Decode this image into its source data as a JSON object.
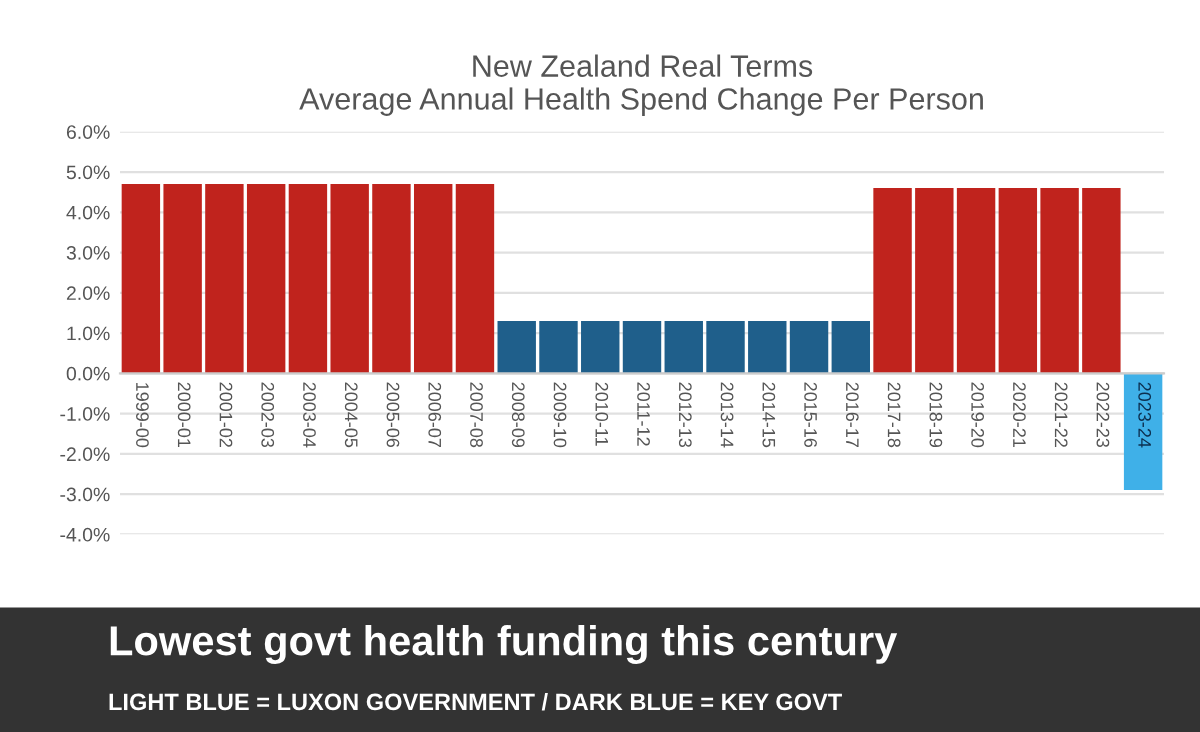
{
  "chart_data": {
    "type": "bar",
    "title": "New Zealand Real Terms\nAverage Annual Health Spend Change Per Person",
    "categories": [
      "1999-00",
      "2000-01",
      "2001-02",
      "2002-03",
      "2003-04",
      "2004-05",
      "2005-06",
      "2006-07",
      "2007-08",
      "2008-09",
      "2009-10",
      "2010-11",
      "2011-12",
      "2012-13",
      "2013-14",
      "2014-15",
      "2015-16",
      "2016-17",
      "2017-18",
      "2018-19",
      "2019-20",
      "2020-21",
      "2021-22",
      "2022-23",
      "2023-24"
    ],
    "values": [
      4.7,
      4.7,
      4.7,
      4.7,
      4.7,
      4.7,
      4.7,
      4.7,
      4.7,
      1.3,
      1.3,
      1.3,
      1.3,
      1.3,
      1.3,
      1.3,
      1.3,
      1.3,
      4.6,
      4.6,
      4.6,
      4.6,
      4.6,
      4.6,
      -2.9
    ],
    "colors": [
      "#c0231d",
      "#c0231d",
      "#c0231d",
      "#c0231d",
      "#c0231d",
      "#c0231d",
      "#c0231d",
      "#c0231d",
      "#c0231d",
      "#1f5f8b",
      "#1f5f8b",
      "#1f5f8b",
      "#1f5f8b",
      "#1f5f8b",
      "#1f5f8b",
      "#1f5f8b",
      "#1f5f8b",
      "#1f5f8b",
      "#c0231d",
      "#c0231d",
      "#c0231d",
      "#c0231d",
      "#c0231d",
      "#c0231d",
      "#3fb0e8"
    ],
    "ylim": [
      -4,
      6
    ],
    "yticks": [
      {
        "value": -4,
        "label": "-4.0%"
      },
      {
        "value": -3,
        "label": "-3.0%"
      },
      {
        "value": -2,
        "label": "-2.0%"
      },
      {
        "value": -1,
        "label": "-1.0%"
      },
      {
        "value": 0,
        "label": "0.0%"
      },
      {
        "value": 1,
        "label": "1.0%"
      },
      {
        "value": 2,
        "label": "2.0%"
      },
      {
        "value": 3,
        "label": "3.0%"
      },
      {
        "value": 4,
        "label": "4.0%"
      },
      {
        "value": 5,
        "label": "5.0%"
      },
      {
        "value": 6,
        "label": "6.0%"
      }
    ],
    "grid": "y",
    "annotations": [
      "Lowest govt health funding this century",
      "LIGHT BLUE = LUXON GOVERNMENT / DARK BLUE = KEY GOVT"
    ]
  }
}
